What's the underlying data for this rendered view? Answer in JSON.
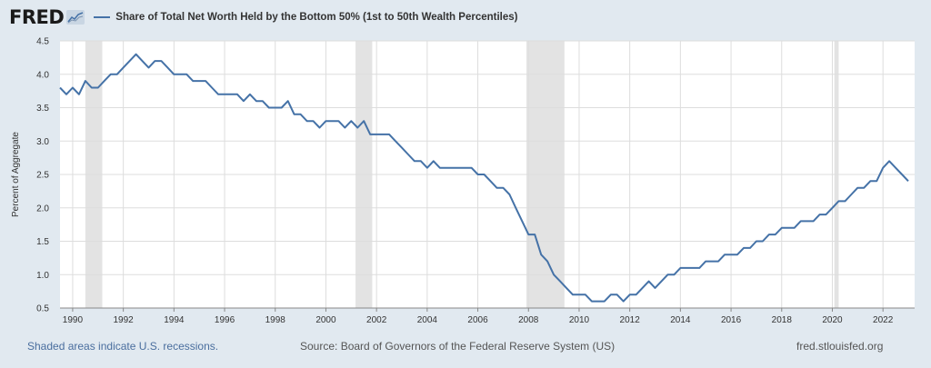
{
  "header": {
    "logo": "FRED",
    "series_title": "Share of Total Net Worth Held by the Bottom 50% (1st to 50th Wealth Percentiles)"
  },
  "footer": {
    "recession_note": "Shaded areas indicate U.S. recessions.",
    "source": "Source: Board of Governors of the Federal Reserve System (US)",
    "site": "fred.stlouisfed.org"
  },
  "colors": {
    "line": "#4572a7",
    "recession": "#e3e3e3",
    "plot_bg": "#ffffff",
    "grid": "#dddddd"
  },
  "chart_data": {
    "type": "line",
    "title": "Share of Total Net Worth Held by the Bottom 50% (1st to 50th Wealth Percentiles)",
    "xlabel": "",
    "ylabel": "Percent of Aggregate",
    "xlim": [
      1989.5,
      2023.25
    ],
    "ylim": [
      0.5,
      4.5
    ],
    "x_ticks": [
      1990,
      1992,
      1994,
      1996,
      1998,
      2000,
      2002,
      2004,
      2006,
      2008,
      2010,
      2012,
      2014,
      2016,
      2018,
      2020,
      2022
    ],
    "y_ticks": [
      "0.5",
      "1.0",
      "1.5",
      "2.0",
      "2.5",
      "3.0",
      "3.5",
      "4.0",
      "4.5"
    ],
    "recessions": [
      [
        1990.5,
        1991.17
      ],
      [
        2001.17,
        2001.83
      ],
      [
        2007.92,
        2009.42
      ],
      [
        2020.08,
        2020.25
      ]
    ],
    "series": [
      {
        "name": "Share of Total Net Worth Held by the Bottom 50%",
        "x": [
          1989.5,
          1989.75,
          1990.0,
          1990.25,
          1990.5,
          1990.75,
          1991.0,
          1991.25,
          1991.5,
          1991.75,
          1992.0,
          1992.25,
          1992.5,
          1992.75,
          1993.0,
          1993.25,
          1993.5,
          1993.75,
          1994.0,
          1994.25,
          1994.5,
          1994.75,
          1995.0,
          1995.25,
          1995.5,
          1995.75,
          1996.0,
          1996.25,
          1996.5,
          1996.75,
          1997.0,
          1997.25,
          1997.5,
          1997.75,
          1998.0,
          1998.25,
          1998.5,
          1998.75,
          1999.0,
          1999.25,
          1999.5,
          1999.75,
          2000.0,
          2000.25,
          2000.5,
          2000.75,
          2001.0,
          2001.25,
          2001.5,
          2001.75,
          2002.0,
          2002.25,
          2002.5,
          2002.75,
          2003.0,
          2003.25,
          2003.5,
          2003.75,
          2004.0,
          2004.25,
          2004.5,
          2004.75,
          2005.0,
          2005.25,
          2005.5,
          2005.75,
          2006.0,
          2006.25,
          2006.5,
          2006.75,
          2007.0,
          2007.25,
          2007.5,
          2007.75,
          2008.0,
          2008.25,
          2008.5,
          2008.75,
          2009.0,
          2009.25,
          2009.5,
          2009.75,
          2010.0,
          2010.25,
          2010.5,
          2010.75,
          2011.0,
          2011.25,
          2011.5,
          2011.75,
          2012.0,
          2012.25,
          2012.5,
          2012.75,
          2013.0,
          2013.25,
          2013.5,
          2013.75,
          2014.0,
          2014.25,
          2014.5,
          2014.75,
          2015.0,
          2015.25,
          2015.5,
          2015.75,
          2016.0,
          2016.25,
          2016.5,
          2016.75,
          2017.0,
          2017.25,
          2017.5,
          2017.75,
          2018.0,
          2018.25,
          2018.5,
          2018.75,
          2019.0,
          2019.25,
          2019.5,
          2019.75,
          2020.0,
          2020.25,
          2020.5,
          2020.75,
          2021.0,
          2021.25,
          2021.5,
          2021.75,
          2022.0,
          2022.25,
          2022.5,
          2022.75,
          2023.0
        ],
        "values": [
          3.8,
          3.7,
          3.8,
          3.7,
          3.9,
          3.8,
          3.8,
          3.9,
          4.0,
          4.0,
          4.1,
          4.2,
          4.3,
          4.2,
          4.1,
          4.2,
          4.2,
          4.1,
          4.0,
          4.0,
          4.0,
          3.9,
          3.9,
          3.9,
          3.8,
          3.7,
          3.7,
          3.7,
          3.7,
          3.6,
          3.7,
          3.6,
          3.6,
          3.5,
          3.5,
          3.5,
          3.6,
          3.4,
          3.4,
          3.3,
          3.3,
          3.2,
          3.3,
          3.3,
          3.3,
          3.2,
          3.3,
          3.2,
          3.3,
          3.1,
          3.1,
          3.1,
          3.1,
          3.0,
          2.9,
          2.8,
          2.7,
          2.7,
          2.6,
          2.7,
          2.6,
          2.6,
          2.6,
          2.6,
          2.6,
          2.6,
          2.5,
          2.5,
          2.4,
          2.3,
          2.3,
          2.2,
          2.0,
          1.8,
          1.6,
          1.6,
          1.3,
          1.2,
          1.0,
          0.9,
          0.8,
          0.7,
          0.7,
          0.7,
          0.6,
          0.6,
          0.6,
          0.7,
          0.7,
          0.6,
          0.7,
          0.7,
          0.8,
          0.9,
          0.8,
          0.9,
          1.0,
          1.0,
          1.1,
          1.1,
          1.1,
          1.1,
          1.2,
          1.2,
          1.2,
          1.3,
          1.3,
          1.3,
          1.4,
          1.4,
          1.5,
          1.5,
          1.6,
          1.6,
          1.7,
          1.7,
          1.7,
          1.8,
          1.8,
          1.8,
          1.9,
          1.9,
          2.0,
          2.1,
          2.1,
          2.2,
          2.3,
          2.3,
          2.4,
          2.4,
          2.6,
          2.7,
          2.6,
          2.5,
          2.4
        ]
      }
    ]
  }
}
